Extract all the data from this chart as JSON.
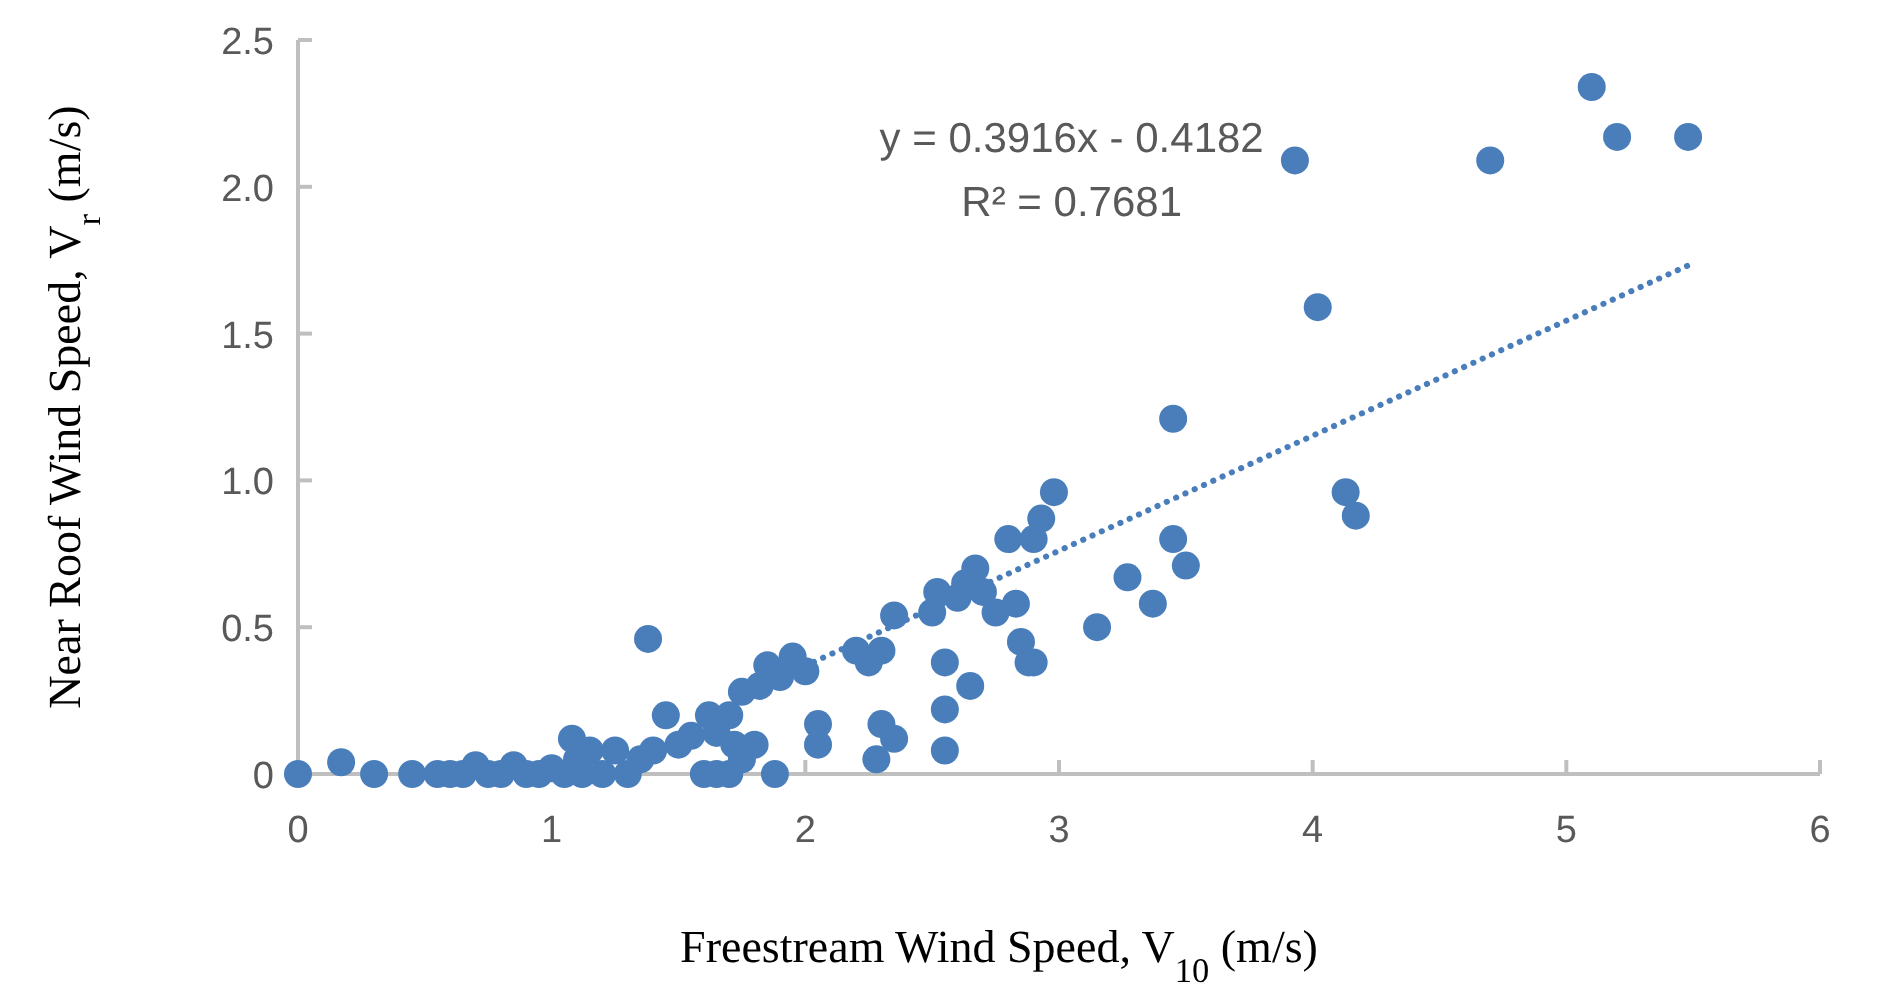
{
  "chart_data": {
    "type": "scatter",
    "xlabel": "Freestream Wind Speed, V$_{10}$ (m/s)",
    "ylabel": "Near Roof Wind Speed, V$_{r}$ (m/s)",
    "annotations": [
      "y = 0.3916x - 0.4182",
      "R² = 0.7681"
    ],
    "xlim": [
      0,
      6
    ],
    "xticks": [
      0,
      1,
      2,
      3,
      4,
      5,
      6
    ],
    "ylim": [
      0,
      2.5
    ],
    "yticks": [
      0,
      {
        "value": 0.5,
        "label": "0.5"
      },
      {
        "value": 1,
        "label": "1.0"
      },
      {
        "value": 1.5,
        "label": "1.5"
      },
      {
        "value": 2,
        "label": "2.0"
      },
      {
        "value": 2.5,
        "label": "2.5"
      }
    ],
    "grid": false,
    "marker": "circle",
    "series": [
      {
        "color": "#4a7ebb",
        "x": [
          0,
          0.17,
          0.3,
          0.45,
          0.55,
          0.6,
          0.65,
          0.7,
          0.75,
          0.8,
          0.85,
          0.9,
          0.95,
          1.0,
          1.05,
          1.08,
          1.1,
          1.12,
          1.15,
          1.2,
          1.25,
          1.3,
          1.35,
          1.38,
          1.4,
          1.45,
          1.5,
          1.55,
          1.6,
          1.62,
          1.65,
          1.7,
          1.72,
          1.75,
          1.65,
          1.7,
          1.75,
          1.8,
          1.82,
          1.85,
          1.88,
          1.9,
          1.95,
          2.0,
          2.05,
          2.05,
          2.2,
          2.25,
          2.3,
          2.28,
          2.3,
          2.35,
          2.35,
          2.5,
          2.52,
          2.55,
          2.55,
          2.55,
          2.6,
          2.63,
          2.65,
          2.67,
          2.7,
          2.75,
          2.8,
          2.83,
          2.85,
          2.88,
          2.9,
          2.9,
          2.93,
          2.98,
          3.15,
          3.27,
          3.37,
          3.45,
          3.45,
          3.5,
          3.93,
          4.02,
          4.13,
          4.17,
          4.7,
          5.1,
          5.2,
          5.48
        ],
        "values": [
          0,
          0.04,
          0,
          0,
          0,
          0,
          0,
          0.03,
          0,
          0,
          0.03,
          0,
          0,
          0.02,
          0,
          0.12,
          0.05,
          0,
          0.08,
          0,
          0.08,
          0,
          0.05,
          0.46,
          0.08,
          0.2,
          0.1,
          0.13,
          0,
          0.2,
          0.14,
          0.2,
          0.1,
          0.28,
          0,
          0,
          0.05,
          0.1,
          0.3,
          0.37,
          0,
          0.33,
          0.4,
          0.35,
          0.1,
          0.17,
          0.42,
          0.38,
          0.42,
          0.05,
          0.17,
          0.12,
          0.54,
          0.55,
          0.62,
          0.38,
          0.22,
          0.08,
          0.6,
          0.65,
          0.3,
          0.7,
          0.62,
          0.55,
          0.8,
          0.58,
          0.45,
          0.38,
          0.8,
          0.38,
          0.87,
          0.96,
          0.5,
          0.67,
          0.58,
          0.8,
          1.21,
          0.71,
          2.09,
          1.59,
          0.96,
          0.88,
          2.09,
          2.34,
          2.17,
          2.17
        ]
      },
      {
        "type": "line",
        "color": "#4a7ebb",
        "line_style": "dotted",
        "marker": "none",
        "x": [
          1.85,
          5.5
        ],
        "values": [
          0.31,
          1.74
        ]
      }
    ]
  }
}
